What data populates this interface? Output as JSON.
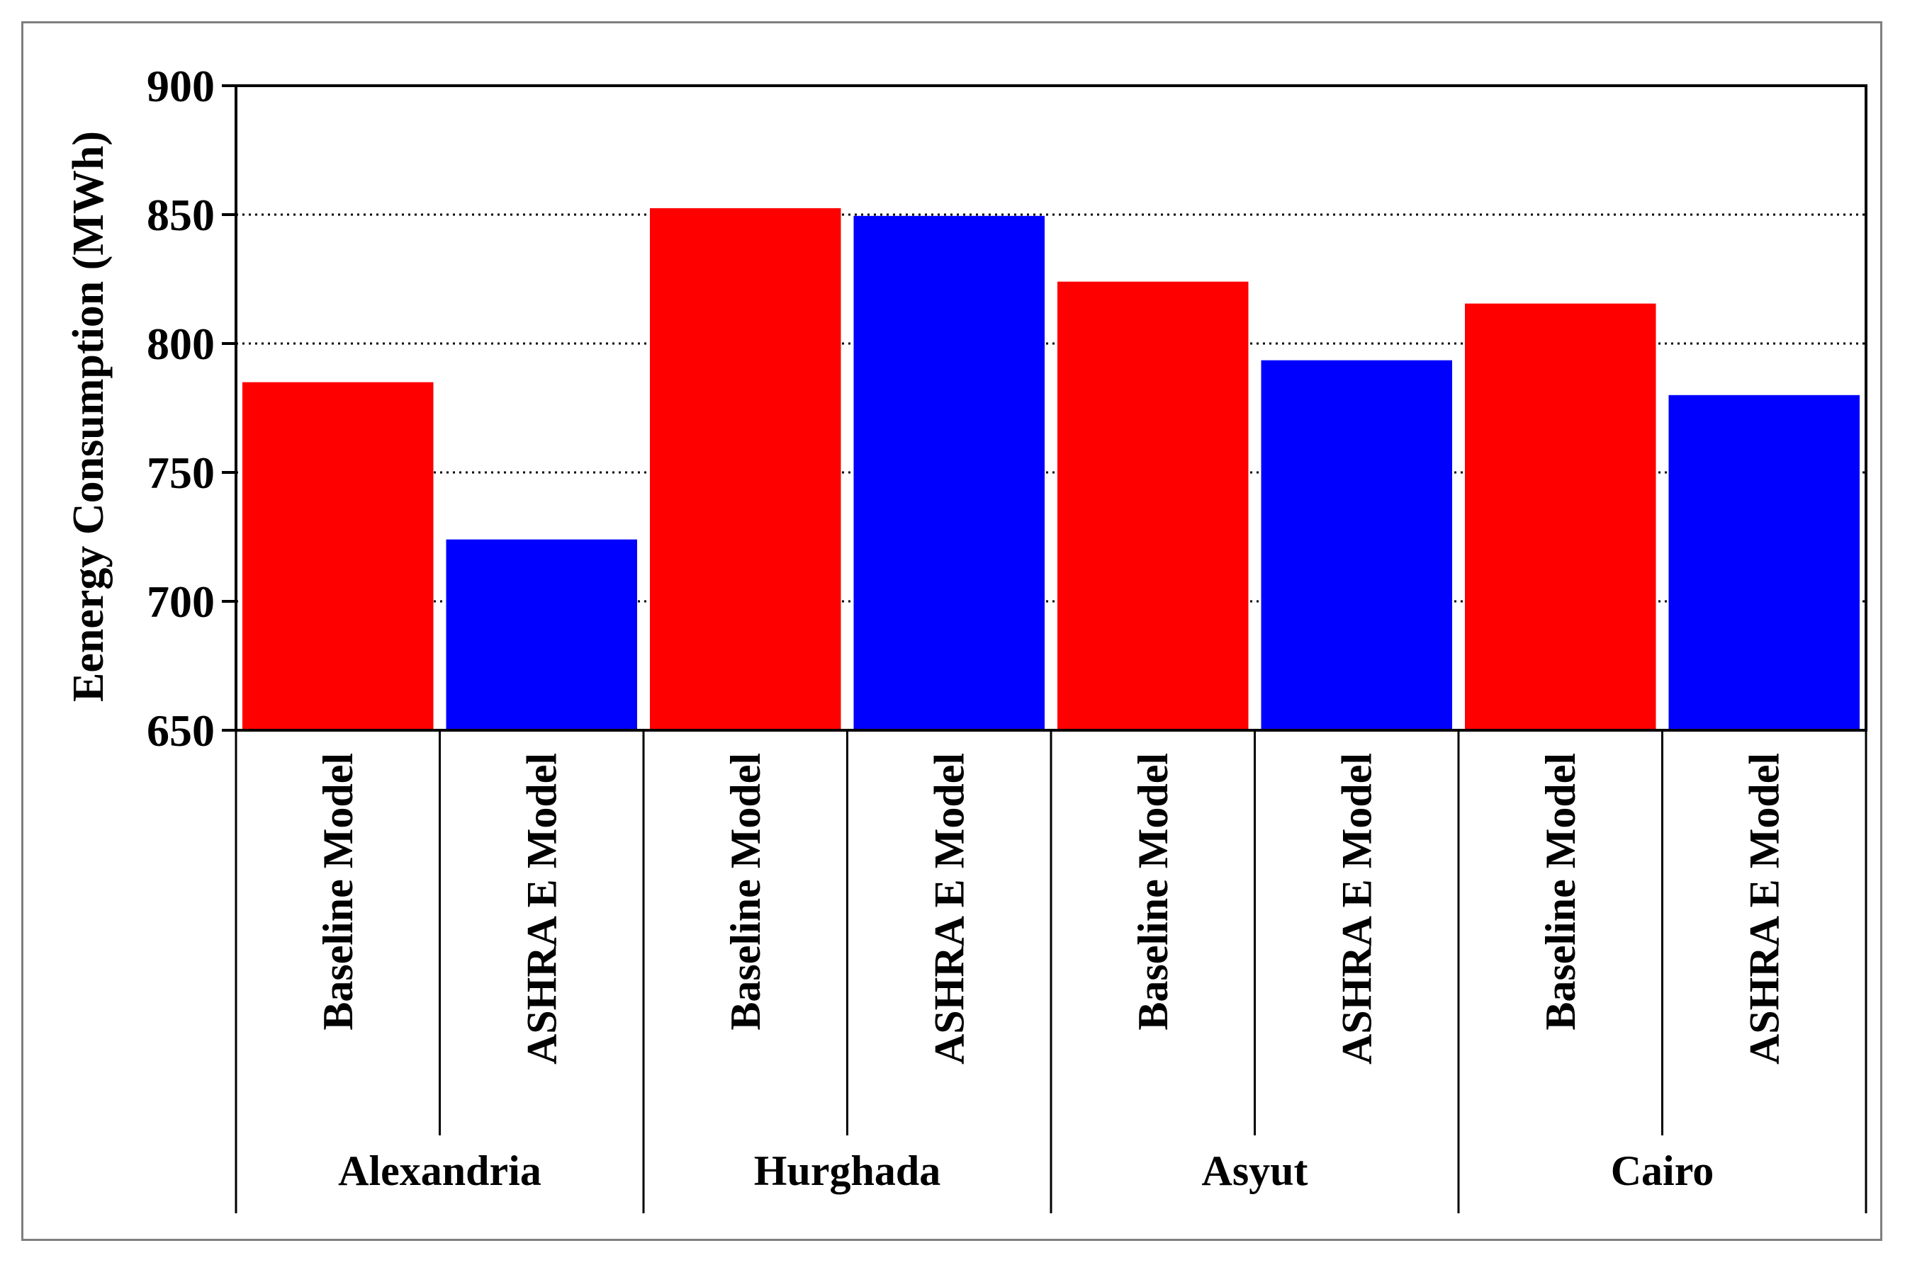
{
  "chart_data": {
    "type": "bar",
    "ylabel": "Eenergy Consumption (MWh)",
    "xlabel": "",
    "ylim": [
      650,
      900
    ],
    "yticks": [
      650,
      700,
      750,
      800,
      850,
      900
    ],
    "grid": "horizontal-dotted",
    "groups": [
      {
        "name": "Alexandria",
        "bars": [
          {
            "label": "Baseline Model",
            "value": 785,
            "color": "#ff0000"
          },
          {
            "label": "ASHRA E Model",
            "value": 724,
            "color": "#0000ff"
          }
        ]
      },
      {
        "name": "Hurghada",
        "bars": [
          {
            "label": "Baseline Model",
            "value": 852.5,
            "color": "#ff0000"
          },
          {
            "label": "ASHRA E Model",
            "value": 849.5,
            "color": "#0000ff"
          }
        ]
      },
      {
        "name": "Asyut",
        "bars": [
          {
            "label": "Baseline Model",
            "value": 824,
            "color": "#ff0000"
          },
          {
            "label": "ASHRA E Model",
            "value": 793.5,
            "color": "#0000ff"
          }
        ]
      },
      {
        "name": "Cairo",
        "bars": [
          {
            "label": "Baseline Model",
            "value": 815.5,
            "color": "#ff0000"
          },
          {
            "label": "ASHRA E Model",
            "value": 780,
            "color": "#0000ff"
          }
        ]
      }
    ]
  }
}
